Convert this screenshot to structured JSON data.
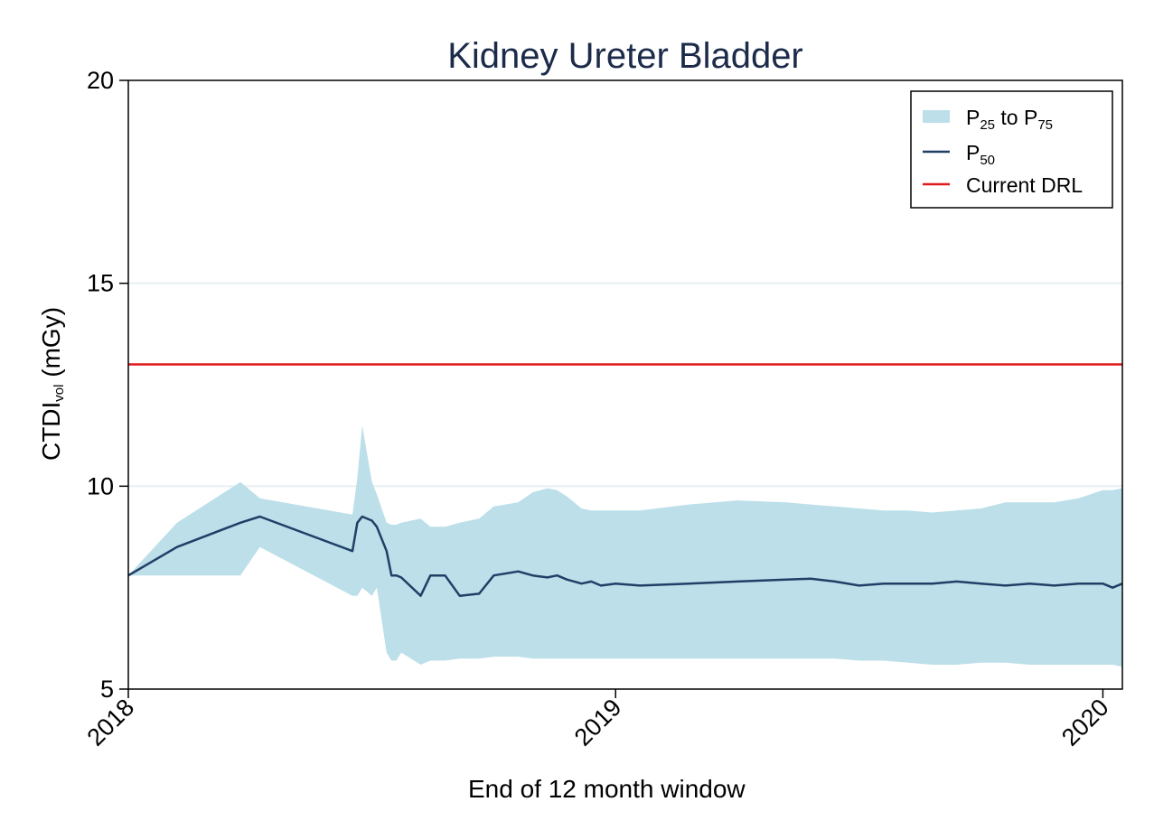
{
  "chart_data": {
    "type": "area",
    "title": "Kidney Ureter Bladder",
    "xlabel": "End of 12 month window",
    "ylabel": {
      "main": "CTDI",
      "sub": "vol",
      "unit": " (mGy)"
    },
    "ylim": [
      5,
      20
    ],
    "xlim": [
      2018.0,
      2020.04
    ],
    "yticks": [
      "5",
      "10",
      "15",
      "20"
    ],
    "ytick_values": [
      5,
      10,
      15,
      20
    ],
    "xticks": [
      "2018",
      "2019",
      "2020"
    ],
    "xtick_values": [
      2018.0,
      2019.0,
      2020.0
    ],
    "grid": "horizontal",
    "legend_position": "top-right",
    "legend": [
      {
        "key": "band",
        "text": "P",
        "sub": "25",
        "text2": " to P",
        "sub2": "75",
        "color": "#bcdfea"
      },
      {
        "key": "median",
        "text": "P",
        "sub": "50",
        "text2": "",
        "sub2": "",
        "color": "#1f3f66"
      },
      {
        "key": "drl",
        "text": "Current DRL",
        "sub": "",
        "text2": "",
        "sub2": "",
        "color": "#e0191a"
      }
    ],
    "drl": 13.0,
    "x": [
      2018.0,
      2018.1,
      2018.23,
      2018.27,
      2018.46,
      2018.47,
      2018.48,
      2018.5,
      2018.51,
      2018.53,
      2018.54,
      2018.55,
      2018.56,
      2018.6,
      2018.62,
      2018.65,
      2018.68,
      2018.72,
      2018.75,
      2018.8,
      2018.83,
      2018.86,
      2018.88,
      2018.9,
      2018.93,
      2018.95,
      2018.97,
      2019.0,
      2019.05,
      2019.15,
      2019.25,
      2019.35,
      2019.4,
      2019.45,
      2019.5,
      2019.55,
      2019.6,
      2019.65,
      2019.7,
      2019.75,
      2019.8,
      2019.85,
      2019.9,
      2019.95,
      2020.0,
      2020.02,
      2020.04
    ],
    "p25": [
      7.8,
      7.8,
      7.8,
      8.5,
      7.3,
      7.3,
      7.5,
      7.3,
      7.5,
      5.9,
      5.7,
      5.7,
      5.9,
      5.6,
      5.7,
      5.7,
      5.75,
      5.75,
      5.8,
      5.8,
      5.75,
      5.75,
      5.75,
      5.75,
      5.75,
      5.75,
      5.75,
      5.75,
      5.75,
      5.75,
      5.75,
      5.75,
      5.75,
      5.75,
      5.7,
      5.7,
      5.65,
      5.6,
      5.6,
      5.65,
      5.65,
      5.6,
      5.6,
      5.6,
      5.6,
      5.6,
      5.55
    ],
    "p50": [
      7.8,
      8.5,
      9.1,
      9.25,
      8.4,
      9.1,
      9.25,
      9.15,
      9.0,
      8.4,
      7.8,
      7.8,
      7.75,
      7.3,
      7.8,
      7.8,
      7.3,
      7.35,
      7.8,
      7.9,
      7.8,
      7.75,
      7.8,
      7.7,
      7.6,
      7.65,
      7.55,
      7.6,
      7.55,
      7.6,
      7.65,
      7.7,
      7.72,
      7.65,
      7.55,
      7.6,
      7.6,
      7.6,
      7.65,
      7.6,
      7.55,
      7.6,
      7.55,
      7.6,
      7.6,
      7.5,
      7.6
    ],
    "p75": [
      7.8,
      9.1,
      10.1,
      9.7,
      9.3,
      10.2,
      11.5,
      10.1,
      9.8,
      9.1,
      9.05,
      9.05,
      9.1,
      9.2,
      9.0,
      9.0,
      9.1,
      9.2,
      9.5,
      9.6,
      9.85,
      9.95,
      9.9,
      9.75,
      9.45,
      9.4,
      9.4,
      9.4,
      9.4,
      9.55,
      9.65,
      9.6,
      9.55,
      9.5,
      9.45,
      9.4,
      9.4,
      9.35,
      9.4,
      9.45,
      9.6,
      9.6,
      9.6,
      9.7,
      9.9,
      9.9,
      9.95
    ]
  }
}
